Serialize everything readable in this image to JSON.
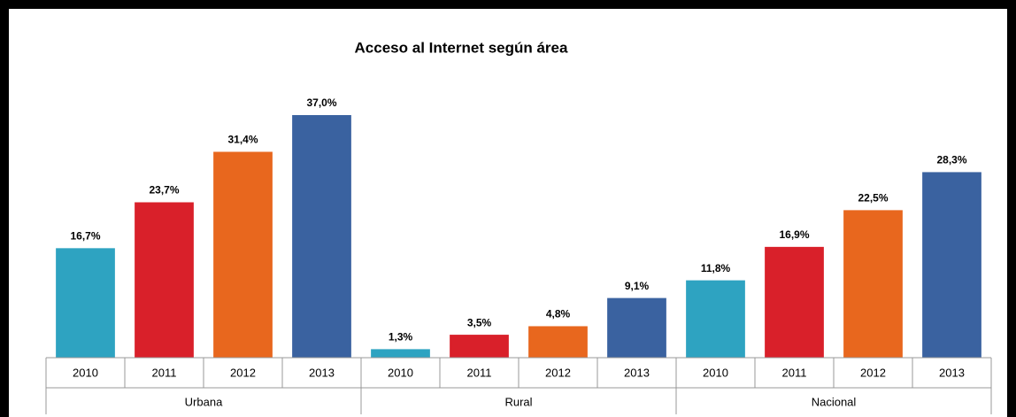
{
  "chart_data": {
    "type": "bar",
    "title": "Acceso al Internet según área",
    "categories": [
      "Urbana",
      "Rural",
      "Nacional"
    ],
    "series": [
      {
        "name": "2010",
        "color": "#2ea3c1",
        "values": [
          16.7,
          1.3,
          11.8
        ],
        "value_labels": [
          "16,7%",
          "1,3%",
          "11,8%"
        ]
      },
      {
        "name": "2011",
        "color": "#d9202a",
        "values": [
          23.7,
          3.5,
          16.9
        ],
        "value_labels": [
          "23,7%",
          "3,5%",
          "16,9%"
        ]
      },
      {
        "name": "2012",
        "color": "#e8671e",
        "values": [
          31.4,
          4.8,
          22.5
        ],
        "value_labels": [
          "31,4%",
          "4,8%",
          "22,5%"
        ]
      },
      {
        "name": "2013",
        "color": "#3a62a0",
        "values": [
          37.0,
          9.1,
          28.3
        ],
        "value_labels": [
          "37,0%",
          "9,1%",
          "28,3%"
        ]
      }
    ]
  }
}
